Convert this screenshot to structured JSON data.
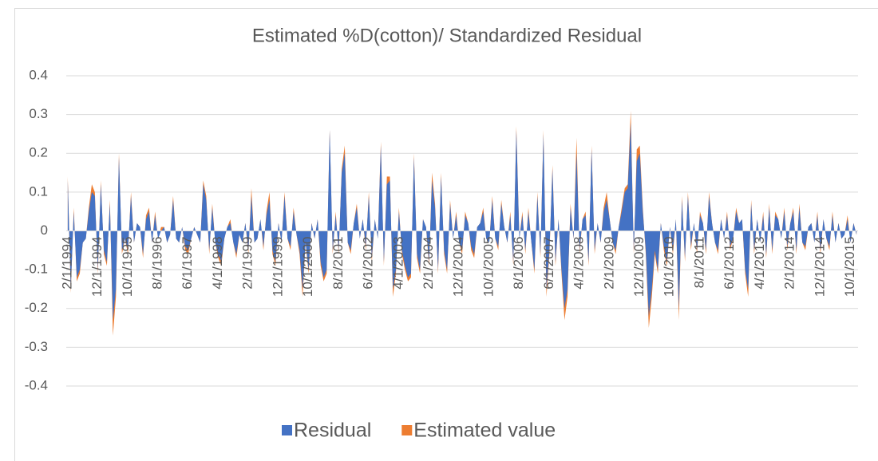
{
  "chart_data": {
    "type": "area",
    "title": "Estimated %D(cotton)/ Standardized Residual",
    "legend": "bottom",
    "grid": true,
    "ylim": [
      -0.4,
      0.4
    ],
    "yticks": [
      -0.4,
      -0.3,
      -0.2,
      -0.1,
      0,
      0.1,
      0.2,
      0.3,
      0.4
    ],
    "categories": [
      "2/1/1994",
      null,
      null,
      null,
      null,
      null,
      null,
      null,
      null,
      null,
      "12/1/1994",
      null,
      null,
      null,
      null,
      null,
      null,
      null,
      null,
      null,
      "10/1/1995",
      null,
      null,
      null,
      null,
      null,
      null,
      null,
      null,
      null,
      "8/1/1996",
      null,
      null,
      null,
      null,
      null,
      null,
      null,
      null,
      null,
      "6/1/1997",
      null,
      null,
      null,
      null,
      null,
      null,
      null,
      null,
      null,
      "4/1/1998",
      null,
      null,
      null,
      null,
      null,
      null,
      null,
      null,
      null,
      "2/1/1999",
      null,
      null,
      null,
      null,
      null,
      null,
      null,
      null,
      null,
      "12/1/1999",
      null,
      null,
      null,
      null,
      null,
      null,
      null,
      null,
      null,
      "10/1/2000",
      null,
      null,
      null,
      null,
      null,
      null,
      null,
      null,
      null,
      "8/1/2001",
      null,
      null,
      null,
      null,
      null,
      null,
      null,
      null,
      null,
      "6/1/2002",
      null,
      null,
      null,
      null,
      null,
      null,
      null,
      null,
      null,
      "4/1/2003",
      null,
      null,
      null,
      null,
      null,
      null,
      null,
      null,
      null,
      "2/1/2004",
      null,
      null,
      null,
      null,
      null,
      null,
      null,
      null,
      null,
      "12/1/2004",
      null,
      null,
      null,
      null,
      null,
      null,
      null,
      null,
      null,
      "10/1/2005",
      null,
      null,
      null,
      null,
      null,
      null,
      null,
      null,
      null,
      "8/1/2006",
      null,
      null,
      null,
      null,
      null,
      null,
      null,
      null,
      null,
      "6/1/2007",
      null,
      null,
      null,
      null,
      null,
      null,
      null,
      null,
      null,
      "4/1/2008",
      null,
      null,
      null,
      null,
      null,
      null,
      null,
      null,
      null,
      "2/1/2009",
      null,
      null,
      null,
      null,
      null,
      null,
      null,
      null,
      null,
      "12/1/2009",
      null,
      null,
      null,
      null,
      null,
      null,
      null,
      null,
      null,
      "10/1/2010",
      null,
      null,
      null,
      null,
      null,
      null,
      null,
      null,
      null,
      "8/1/2011",
      null,
      null,
      null,
      null,
      null,
      null,
      null,
      null,
      null,
      "6/1/2012",
      null,
      null,
      null,
      null,
      null,
      null,
      null,
      null,
      null,
      "4/1/2013",
      null,
      null,
      null,
      null,
      null,
      null,
      null,
      null,
      null,
      "2/1/2014",
      null,
      null,
      null,
      null,
      null,
      null,
      null,
      null,
      null,
      "12/1/2014",
      null,
      null,
      null,
      null,
      null,
      null,
      null,
      null,
      null,
      "10/1/2015",
      null,
      null
    ],
    "series": [
      {
        "name": "Residual",
        "color": "#4472c4",
        "values": [
          0.13,
          -0.15,
          0.05,
          -0.12,
          -0.1,
          -0.03,
          -0.02,
          0.05,
          0.1,
          0.09,
          -0.1,
          0.12,
          -0.05,
          -0.08,
          0.07,
          -0.23,
          -0.15,
          0.19,
          -0.05,
          -0.02,
          -0.05,
          0.09,
          -0.03,
          0.02,
          0.01,
          -0.06,
          0.03,
          0.05,
          -0.03,
          0.04,
          -0.02,
          0,
          0.01,
          -0.03,
          -0.01,
          0.08,
          -0.02,
          -0.03,
          0.01,
          -0.04,
          -0.05,
          -0.02,
          0.01,
          -0.01,
          -0.03,
          0.12,
          0.08,
          -0.05,
          0.06,
          -0.03,
          -0.06,
          -0.08,
          -0.02,
          0.01,
          0.02,
          -0.03,
          -0.06,
          -0.01,
          -0.03,
          0.02,
          -0.05,
          0.09,
          -0.03,
          -0.02,
          0.03,
          -0.04,
          0.04,
          0.08,
          -0.05,
          -0.08,
          0.02,
          -0.03,
          0.09,
          -0.02,
          -0.04,
          0.05,
          -0.01,
          -0.05,
          -0.15,
          -0.03,
          -0.1,
          0.02,
          -0.02,
          0.03,
          -0.08,
          -0.12,
          -0.1,
          0.26,
          -0.05,
          0.04,
          -0.05,
          0.15,
          0.2,
          -0.03,
          -0.05,
          0.02,
          0.06,
          -0.02,
          0.03,
          -0.04,
          0.09,
          -0.07,
          0.03,
          -0.02,
          0.22,
          -0.08,
          0.12,
          0.13,
          -0.15,
          -0.1,
          0.05,
          -0.05,
          -0.09,
          -0.12,
          -0.11,
          0.19,
          -0.06,
          -0.1,
          0.03,
          0.01,
          -0.08,
          0.13,
          0.06,
          -0.1,
          0.14,
          -0.05,
          -0.1,
          0.07,
          -0.02,
          0.04,
          -0.03,
          -0.05,
          0.04,
          0.02,
          -0.04,
          -0.06,
          0.01,
          0.02,
          0.05,
          -0.02,
          -0.03,
          0.08,
          -0.02,
          -0.04,
          0.07,
          0.01,
          -0.03,
          0.04,
          -0.08,
          0.26,
          -0.02,
          0.04,
          -0.05,
          0.05,
          -0.03,
          -0.1,
          0.09,
          -0.06,
          0.25,
          -0.15,
          -0.05,
          0.16,
          -0.08,
          0.03,
          -0.1,
          -0.2,
          -0.15,
          0.06,
          -0.02,
          0.2,
          -0.05,
          0.03,
          0.04,
          -0.08,
          0.21,
          -0.05,
          0.02,
          -0.03,
          0.05,
          0.08,
          0.03,
          -0.03,
          -0.05,
          0.01,
          0.05,
          0.1,
          0.11,
          0.28,
          -0.05,
          0.18,
          0.2,
          0.05,
          -0.05,
          -0.22,
          -0.15,
          -0.05,
          -0.1,
          0.02,
          -0.04,
          -0.08,
          0.01,
          -0.05,
          0.03,
          -0.2,
          0.08,
          -0.07,
          0.09,
          -0.04,
          0.02,
          -0.05,
          0.04,
          0.02,
          -0.05,
          0.09,
          0.02,
          -0.03,
          -0.05,
          0.03,
          -0.02,
          0.04,
          -0.04,
          -0.02,
          0.05,
          0.02,
          0.03,
          -0.1,
          -0.15,
          0.07,
          -0.05,
          0.03,
          -0.03,
          0.04,
          -0.06,
          0.06,
          -0.05,
          0.04,
          0.03,
          -0.02,
          0.05,
          -0.04,
          0.02,
          0.05,
          -0.05,
          0.06,
          -0.03,
          -0.04,
          0.01,
          0.02,
          -0.03,
          0.04,
          -0.05,
          0.03,
          -0.02,
          -0.04,
          0.04,
          -0.03,
          0.02,
          -0.02,
          -0.01,
          0.03,
          -0.03,
          0.02,
          -0.01
        ]
      },
      {
        "name": "Estimated value",
        "color": "#ed7d31",
        "values": [
          0.14,
          -0.16,
          0.06,
          -0.13,
          -0.11,
          -0.03,
          -0.02,
          0.06,
          0.12,
          0.1,
          -0.11,
          0.13,
          -0.06,
          -0.09,
          0.08,
          -0.27,
          -0.17,
          0.2,
          -0.06,
          -0.02,
          -0.06,
          0.1,
          -0.03,
          0.02,
          0.01,
          -0.07,
          0.04,
          0.06,
          -0.03,
          0.05,
          -0.02,
          0.01,
          0.01,
          -0.03,
          -0.01,
          0.09,
          -0.02,
          -0.03,
          0.01,
          -0.05,
          -0.06,
          -0.02,
          0.01,
          -0.01,
          -0.03,
          0.13,
          0.09,
          -0.06,
          0.07,
          -0.03,
          -0.07,
          -0.09,
          -0.02,
          0.01,
          0.03,
          -0.03,
          -0.07,
          -0.01,
          -0.03,
          0.02,
          -0.06,
          0.11,
          -0.03,
          -0.02,
          0.03,
          -0.05,
          0.05,
          0.1,
          -0.06,
          -0.09,
          0.02,
          -0.03,
          0.1,
          -0.02,
          -0.05,
          0.06,
          -0.01,
          -0.06,
          -0.17,
          -0.03,
          -0.11,
          0.02,
          -0.02,
          0.03,
          -0.09,
          -0.13,
          -0.11,
          0.26,
          -0.06,
          0.05,
          -0.06,
          0.16,
          0.22,
          -0.03,
          -0.06,
          0.02,
          0.07,
          -0.02,
          0.03,
          -0.05,
          0.1,
          -0.08,
          0.03,
          -0.02,
          0.23,
          -0.09,
          0.14,
          0.14,
          -0.17,
          -0.11,
          0.06,
          -0.06,
          -0.1,
          -0.13,
          -0.12,
          0.2,
          -0.07,
          -0.11,
          0.03,
          0.01,
          -0.09,
          0.15,
          0.07,
          -0.11,
          0.15,
          -0.06,
          -0.11,
          0.08,
          -0.02,
          0.05,
          -0.03,
          -0.06,
          0.05,
          0.02,
          -0.05,
          -0.07,
          0.01,
          0.02,
          0.06,
          -0.02,
          -0.03,
          0.09,
          -0.02,
          -0.05,
          0.08,
          0.01,
          -0.03,
          0.05,
          -0.09,
          0.27,
          -0.02,
          0.05,
          -0.06,
          0.06,
          -0.03,
          -0.11,
          0.1,
          -0.07,
          0.26,
          -0.17,
          -0.06,
          0.17,
          -0.09,
          0.03,
          -0.11,
          -0.23,
          -0.17,
          0.07,
          -0.02,
          0.24,
          -0.06,
          0.03,
          0.05,
          -0.09,
          0.22,
          -0.06,
          0.02,
          -0.03,
          0.06,
          0.1,
          0.03,
          -0.03,
          -0.06,
          0.01,
          0.06,
          0.11,
          0.12,
          0.31,
          -0.06,
          0.21,
          0.22,
          0.06,
          -0.06,
          -0.25,
          -0.17,
          -0.06,
          -0.11,
          0.02,
          -0.05,
          -0.09,
          0.01,
          -0.06,
          0.03,
          -0.23,
          0.09,
          -0.08,
          0.1,
          -0.05,
          0.02,
          -0.06,
          0.05,
          0.02,
          -0.06,
          0.1,
          0.02,
          -0.03,
          -0.06,
          0.03,
          -0.02,
          0.05,
          -0.05,
          -0.02,
          0.06,
          0.02,
          0.03,
          -0.11,
          -0.17,
          0.08,
          -0.06,
          0.03,
          -0.03,
          0.05,
          -0.07,
          0.07,
          -0.06,
          0.05,
          0.03,
          -0.02,
          0.06,
          -0.05,
          0.02,
          0.06,
          -0.06,
          0.07,
          -0.03,
          -0.05,
          0.01,
          0.02,
          -0.03,
          0.05,
          -0.06,
          0.03,
          -0.02,
          -0.05,
          0.05,
          -0.03,
          0.02,
          -0.02,
          -0.01,
          0.04,
          -0.03,
          0.02,
          -0.01
        ]
      }
    ]
  }
}
